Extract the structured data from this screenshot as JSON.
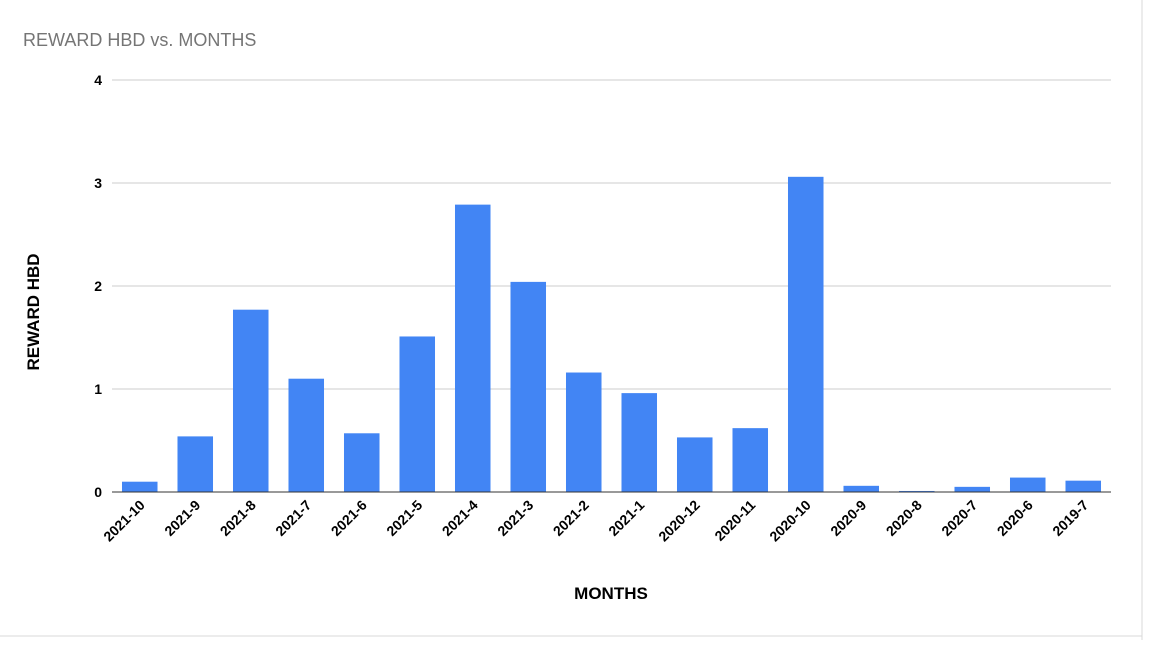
{
  "chart_data": {
    "type": "bar",
    "title": "REWARD HBD vs. MONTHS",
    "xlabel": "MONTHS",
    "ylabel": "REWARD HBD",
    "categories": [
      "2021-10",
      "2021-9",
      "2021-8",
      "2021-7",
      "2021-6",
      "2021-5",
      "2021-4",
      "2021-3",
      "2021-2",
      "2021-1",
      "2020-12",
      "2020-11",
      "2020-10",
      "2020-9",
      "2020-8",
      "2020-7",
      "2020-6",
      "2019-7"
    ],
    "values": [
      0.1,
      0.54,
      1.77,
      1.1,
      0.57,
      1.51,
      2.79,
      2.04,
      1.16,
      0.96,
      0.53,
      0.62,
      3.06,
      0.06,
      0.01,
      0.05,
      0.14,
      0.11
    ],
    "ylim": [
      0,
      4
    ],
    "yticks": [
      "0",
      "1",
      "2",
      "3",
      "4"
    ],
    "grid": true,
    "colors": {
      "bar": "#4285f4",
      "grid": "#cccccc",
      "axis": "#333333",
      "title": "#757575",
      "label": "#000000"
    }
  }
}
